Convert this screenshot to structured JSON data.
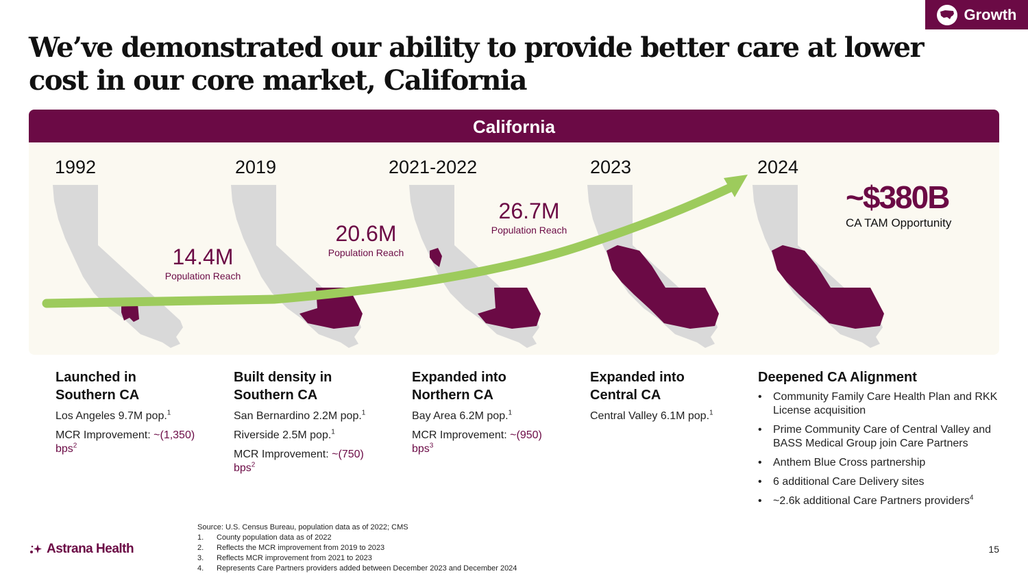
{
  "badge": {
    "label": "Growth",
    "icon": "us-map-icon"
  },
  "title": "We’ve demonstrated our ability to provide better care at lower cost in our core market, California",
  "panel": {
    "header": "California"
  },
  "timeline": {
    "years": [
      "1992",
      "2019",
      "2021-2022",
      "2023",
      "2024"
    ],
    "reach": [
      {
        "value": "14.4M",
        "label": "Population Reach"
      },
      {
        "value": "20.6M",
        "label": "Population Reach"
      },
      {
        "value": "26.7M",
        "label": "Population Reach"
      }
    ],
    "tam": {
      "value": "~$380B",
      "label": "CA TAM Opportunity"
    }
  },
  "columns": [
    {
      "heading_line1": "Launched in",
      "heading_line2": "Southern CA",
      "item1": "Los Angeles 9.7M pop.",
      "item1_sup": "1",
      "mcr_label": "MCR Improvement: ",
      "mcr_value": "~(1,350)",
      "mcr_unit": "bps",
      "mcr_sup": "2"
    },
    {
      "heading_line1": "Built density in",
      "heading_line2": "Southern CA",
      "item1": "San Bernardino 2.2M pop.",
      "item1_sup": "1",
      "item2": "Riverside 2.5M pop.",
      "item2_sup": "1",
      "mcr_label": "MCR Improvement: ",
      "mcr_value": "~(750)",
      "mcr_unit": "bps",
      "mcr_sup": "2"
    },
    {
      "heading_line1": "Expanded into",
      "heading_line2": "Northern CA",
      "item1": "Bay Area 6.2M pop.",
      "item1_sup": "1",
      "mcr_label": "MCR Improvement: ",
      "mcr_value": "~(950)",
      "mcr_unit": "bps",
      "mcr_sup": "3"
    },
    {
      "heading_line1": "Expanded into",
      "heading_line2": "Central CA",
      "item1": "Central Valley 6.1M pop.",
      "item1_sup": "1"
    },
    {
      "heading": "Deepened CA Alignment",
      "bullets": [
        "Community Family Care Health Plan and RKK License acquisition",
        "Prime Community Care of Central Valley and BASS Medical Group join Care Partners",
        "Anthem Blue Cross partnership",
        "6 additional Care Delivery sites",
        "~2.6k additional Care Partners providers"
      ],
      "last_bullet_sup": "4"
    }
  ],
  "footnotes": {
    "source": "Source: U.S. Census Bureau, population data as of 2022; CMS",
    "items": [
      {
        "num": "1.",
        "text": "County population data as of 2022"
      },
      {
        "num": "2.",
        "text": "Reflects the MCR improvement from 2019 to 2023"
      },
      {
        "num": "3.",
        "text": "Reflects MCR improvement from 2021 to 2023"
      },
      {
        "num": "4.",
        "text": "Represents Care Partners providers added between December 2023 and December 2024"
      }
    ]
  },
  "logo": {
    "text": "Astrana Health",
    "icon": "astrana-sparkle-icon"
  },
  "page_number": "15",
  "colors": {
    "brand": "#6b0a45",
    "arrow": "#9dcb5c",
    "map": "#d9d9d9",
    "panel": "#fbf9f1"
  }
}
